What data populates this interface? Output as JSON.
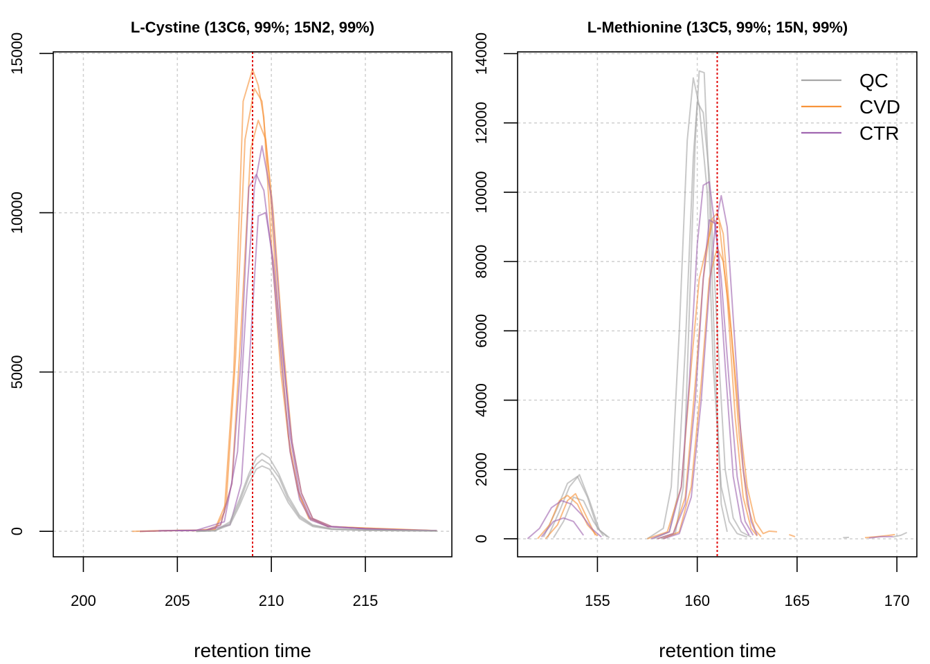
{
  "colors": {
    "QC": "#a6a6a6",
    "CVD": "#f7933a",
    "CTR": "#a066b0",
    "reference_line": "#e00000",
    "grid": "#cfcfcf"
  },
  "legend": {
    "placement": "top-right",
    "entries": [
      "QC",
      "CVD",
      "CTR"
    ]
  },
  "chart_data": [
    {
      "type": "line",
      "title": "L-Cystine (13C6, 99%; 15N2, 99%)",
      "xlabel": "retention time",
      "ylabel": "",
      "xlim": [
        198.4,
        219.6
      ],
      "ylim": [
        -800,
        15050
      ],
      "xticks": [
        200,
        205,
        210,
        215
      ],
      "xtick_labels": [
        "200",
        "205",
        "210",
        "215"
      ],
      "yticks": [
        0,
        5000,
        10000,
        15000
      ],
      "ytick_labels": [
        "0",
        "5000",
        "10000",
        "15000"
      ],
      "grid": true,
      "reference_x": 209,
      "series": [
        {
          "group": "CVD",
          "x": [
            202.6,
            204,
            205,
            206,
            207,
            207.5,
            208,
            208.5,
            209,
            209.3,
            209.6,
            210,
            210.5,
            211,
            211.5,
            212,
            213,
            215,
            217,
            218.8
          ],
          "y": [
            0,
            20,
            30,
            20,
            60,
            600,
            5000,
            13500,
            14500,
            14000,
            13000,
            9000,
            5000,
            2500,
            1100,
            400,
            150,
            100,
            50,
            20
          ]
        },
        {
          "group": "CVD",
          "x": [
            203,
            204.5,
            206,
            207,
            207.6,
            208.1,
            208.6,
            209.1,
            209.5,
            209.9,
            210.4,
            210.9,
            211.4,
            212,
            213,
            215,
            217,
            218.8
          ],
          "y": [
            0,
            20,
            25,
            80,
            900,
            5500,
            12300,
            13900,
            13500,
            11000,
            6500,
            3000,
            1300,
            450,
            150,
            100,
            60,
            20
          ]
        },
        {
          "group": "CVD",
          "x": [
            203,
            205,
            206.5,
            207.3,
            207.9,
            208.4,
            208.9,
            209.3,
            209.7,
            210.1,
            210.6,
            211.1,
            211.6,
            212.2,
            213.2,
            215,
            217,
            218.8
          ],
          "y": [
            0,
            30,
            40,
            200,
            1500,
            6500,
            12000,
            12900,
            12300,
            10000,
            6000,
            2800,
            1200,
            400,
            150,
            90,
            50,
            20
          ]
        },
        {
          "group": "CTR",
          "x": [
            203,
            205,
            206.5,
            207.3,
            207.9,
            208.4,
            208.8,
            209.2,
            209.6,
            210,
            210.5,
            211,
            211.5,
            212.1,
            213,
            215,
            217,
            218.8
          ],
          "y": [
            0,
            25,
            30,
            200,
            1500,
            5500,
            10800,
            11200,
            10700,
            8800,
            5500,
            2500,
            1000,
            350,
            150,
            80,
            40,
            20
          ]
        },
        {
          "group": "CTR",
          "x": [
            204,
            206,
            207.5,
            208.2,
            208.7,
            209.1,
            209.5,
            210,
            210.5,
            211,
            211.5,
            212.1,
            213,
            215,
            217,
            218.8
          ],
          "y": [
            20,
            30,
            300,
            2500,
            7500,
            10800,
            12100,
            10500,
            6500,
            3000,
            1200,
            400,
            150,
            80,
            40,
            20
          ]
        },
        {
          "group": "CTR",
          "x": [
            205,
            206.5,
            207.8,
            208.4,
            208.9,
            209.3,
            209.7,
            210.1,
            210.6,
            211.1,
            211.6,
            212.2,
            213.2,
            215,
            217,
            218.8
          ],
          "y": [
            20,
            30,
            200,
            1500,
            6000,
            9900,
            10000,
            8500,
            5500,
            2800,
            1200,
            400,
            150,
            80,
            40,
            20
          ]
        },
        {
          "group": "QC",
          "x": [
            206,
            207,
            207.8,
            208.3,
            208.8,
            209.2,
            209.5,
            209.9,
            210.4,
            210.9,
            211.5,
            212.2,
            213.2,
            215,
            217,
            218.8
          ],
          "y": [
            0,
            20,
            300,
            1000,
            1800,
            2300,
            2450,
            2300,
            1800,
            1100,
            500,
            200,
            80,
            40,
            25,
            15
          ]
        },
        {
          "group": "QC",
          "x": [
            206,
            207,
            207.8,
            208.3,
            208.8,
            209.2,
            209.5,
            209.9,
            210.4,
            210.9,
            211.5,
            212.2,
            213.2,
            215,
            217,
            218.8
          ],
          "y": [
            0,
            20,
            250,
            900,
            1700,
            2100,
            2250,
            2100,
            1700,
            1000,
            450,
            180,
            70,
            35,
            20,
            10
          ]
        },
        {
          "group": "QC",
          "x": [
            206,
            207,
            207.8,
            208.3,
            208.8,
            209.2,
            209.5,
            209.9,
            210.4,
            210.9,
            211.5,
            212.2,
            213.2,
            215,
            217,
            218.8
          ],
          "y": [
            0,
            20,
            200,
            800,
            1500,
            1950,
            2050,
            1950,
            1500,
            900,
            400,
            150,
            60,
            30,
            20,
            10
          ]
        }
      ]
    },
    {
      "type": "line",
      "title": "L-Methionine (13C5, 99%; 15N, 99%)",
      "xlabel": "retention time",
      "ylabel": "",
      "xlim": [
        151.0,
        171.0
      ],
      "ylim": [
        -520,
        14050
      ],
      "xticks": [
        155,
        160,
        165,
        170
      ],
      "xtick_labels": [
        "155",
        "160",
        "165",
        "170"
      ],
      "yticks": [
        0,
        2000,
        4000,
        6000,
        8000,
        10000,
        12000,
        14000
      ],
      "ytick_labels": [
        "0",
        "2000",
        "4000",
        "6000",
        "8000",
        "10000",
        "12000",
        "14000"
      ],
      "grid": true,
      "reference_x": 161,
      "series": [
        {
          "group": "QC",
          "x": [
            152.3,
            153,
            153.5,
            154,
            154.5,
            155,
            155.5
          ],
          "y": [
            50,
            900,
            1600,
            1800,
            1200,
            300,
            50
          ]
        },
        {
          "group": "QC",
          "x": [
            152.5,
            153.1,
            153.6,
            154.1,
            154.6,
            155.1,
            155.6
          ],
          "y": [
            30,
            800,
            1500,
            1850,
            1100,
            250,
            30
          ]
        },
        {
          "group": "QC",
          "x": [
            152.8,
            153.3,
            153.8,
            154.3,
            154.8,
            155.3
          ],
          "y": [
            30,
            500,
            1200,
            1100,
            500,
            80
          ]
        },
        {
          "group": "QC",
          "x": [
            157.5,
            158.3,
            158.7,
            159.1,
            159.5,
            159.8,
            160.1,
            160.5,
            160.8,
            161.2,
            161.6,
            162,
            162.5
          ],
          "y": [
            0,
            300,
            1500,
            6000,
            11500,
            13300,
            12500,
            10000,
            5000,
            1500,
            500,
            150,
            50
          ]
        },
        {
          "group": "QC",
          "x": [
            157.8,
            158.6,
            159,
            159.4,
            159.8,
            160,
            160.3,
            160.6,
            161,
            161.4,
            161.8,
            162.2,
            162.7
          ],
          "y": [
            0,
            200,
            1200,
            5500,
            11000,
            12600,
            12300,
            10500,
            6000,
            2000,
            600,
            200,
            50
          ]
        },
        {
          "group": "QC",
          "x": [
            158.2,
            158.9,
            159.3,
            159.6,
            159.9,
            160.1,
            160.35,
            160.6,
            160.9,
            161.2,
            161.5
          ],
          "y": [
            0,
            150,
            1500,
            6500,
            11500,
            13500,
            13450,
            10000,
            5000,
            1000,
            200
          ]
        },
        {
          "group": "QC",
          "x": [
            167.3,
            167.6
          ],
          "y": [
            30,
            40
          ]
        },
        {
          "group": "QC",
          "x": [
            169.8,
            170.2,
            170.5
          ],
          "y": [
            50,
            100,
            180
          ]
        },
        {
          "group": "CVD",
          "x": [
            152,
            152.6,
            153.1,
            153.5,
            154,
            154.5,
            155
          ],
          "y": [
            0,
            400,
            1100,
            1250,
            1000,
            400,
            80
          ]
        },
        {
          "group": "CVD",
          "x": [
            152.4,
            153,
            153.5,
            153.9,
            154.4,
            154.9
          ],
          "y": [
            0,
            400,
            1100,
            1300,
            700,
            100
          ]
        },
        {
          "group": "CVD",
          "x": [
            157.5,
            158.5,
            159.2,
            159.7,
            160.1,
            160.5,
            160.8,
            161.1,
            161.5,
            161.9,
            162.3,
            162.7,
            163
          ],
          "y": [
            0,
            200,
            1500,
            5000,
            7500,
            8500,
            9200,
            9100,
            7000,
            3500,
            1200,
            300,
            80
          ]
        },
        {
          "group": "CVD",
          "x": [
            158,
            158.8,
            159.4,
            159.9,
            160.3,
            160.7,
            161,
            161.3,
            161.7,
            162.1,
            162.5,
            162.9,
            163.2
          ],
          "y": [
            0,
            150,
            1200,
            4500,
            7500,
            9200,
            9400,
            8800,
            6000,
            3000,
            1000,
            250,
            60
          ]
        },
        {
          "group": "CVD",
          "x": [
            158.3,
            159.1,
            159.7,
            160.2,
            160.6,
            161,
            161.3,
            161.7,
            162.1,
            162.5,
            162.9,
            163.3,
            163.6,
            164
          ],
          "y": [
            0,
            200,
            1500,
            4500,
            7500,
            8400,
            8000,
            6000,
            3500,
            1500,
            500,
            150,
            220,
            200
          ]
        },
        {
          "group": "CVD",
          "x": [
            164.6,
            164.9
          ],
          "y": [
            120,
            60
          ]
        },
        {
          "group": "CVD",
          "x": [
            168.4,
            169,
            169.5,
            169.9
          ],
          "y": [
            30,
            60,
            90,
            120
          ]
        },
        {
          "group": "CTR",
          "x": [
            151.5,
            152.1,
            152.7,
            153.2,
            153.7,
            154.2,
            154.7,
            155.2
          ],
          "y": [
            0,
            300,
            900,
            1100,
            1000,
            700,
            300,
            50
          ]
        },
        {
          "group": "CTR",
          "x": [
            152.2,
            152.8,
            153.3,
            153.8,
            154.3
          ],
          "y": [
            50,
            500,
            600,
            500,
            100
          ]
        },
        {
          "group": "CTR",
          "x": [
            157.7,
            158.6,
            159.2,
            159.6,
            160,
            160.3,
            160.6,
            161,
            161.4,
            161.8,
            162.2,
            162.6
          ],
          "y": [
            0,
            200,
            1500,
            4500,
            8500,
            10200,
            10300,
            8500,
            5000,
            1800,
            500,
            100
          ]
        },
        {
          "group": "CTR",
          "x": [
            158,
            158.8,
            159.4,
            159.9,
            160.3,
            160.6,
            160.9,
            161.2,
            161.6,
            162,
            162.4,
            162.8
          ],
          "y": [
            0,
            150,
            1000,
            4000,
            7500,
            9200,
            9100,
            7500,
            4500,
            1800,
            500,
            100
          ]
        },
        {
          "group": "CTR",
          "x": [
            158.3,
            159.1,
            159.7,
            160.2,
            160.6,
            160.9,
            161.2,
            161.5,
            161.9,
            162.3,
            162.7,
            163
          ],
          "y": [
            0,
            150,
            1200,
            4000,
            7200,
            9000,
            9900,
            9000,
            5500,
            2000,
            500,
            100
          ]
        },
        {
          "group": "CTR",
          "x": [
            168.6,
            169.2,
            169.8
          ],
          "y": [
            20,
            60,
            60
          ]
        }
      ]
    }
  ]
}
